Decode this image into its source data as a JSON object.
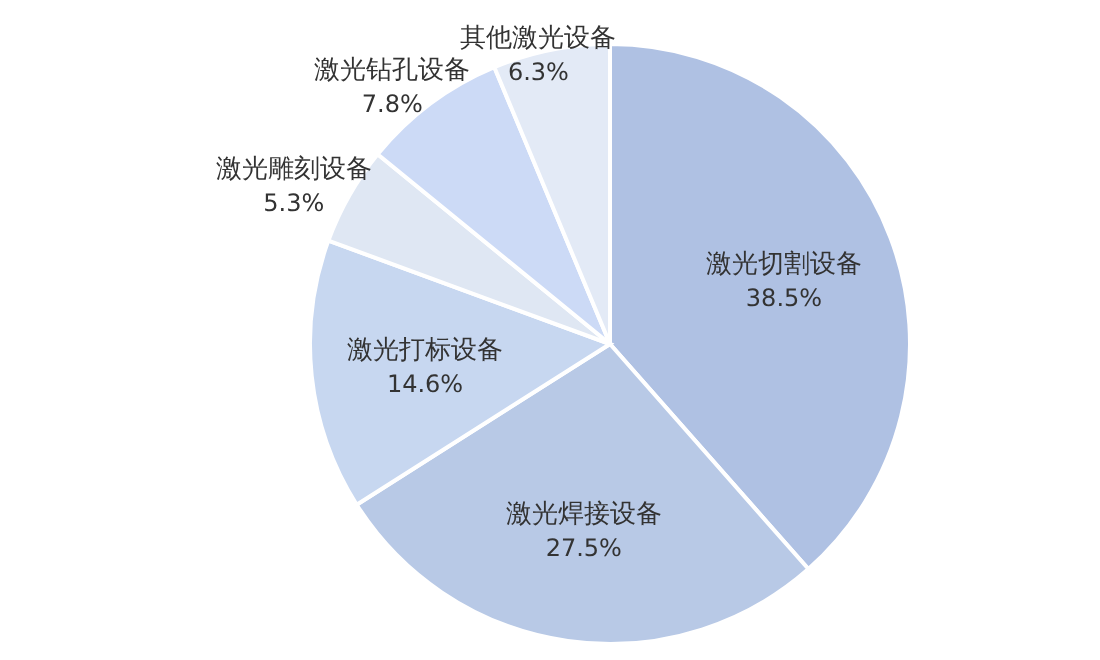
{
  "chart_data": {
    "type": "pie",
    "categories": [
      "激光切割设备",
      "激光焊接设备",
      "激光打标设备",
      "激光雕刻设备",
      "激光钻孔设备",
      "其他激光设备"
    ],
    "values": [
      38.5,
      27.5,
      14.6,
      5.3,
      7.8,
      6.3
    ],
    "colors": [
      "#afc1e3",
      "#b8c9e6",
      "#c7d7f0",
      "#dfe7f3",
      "#ccdaf6",
      "#e3eaf6"
    ],
    "value_labels": [
      "38.5%",
      "27.5%",
      "14.6%",
      "5.3%",
      "7.8%",
      "6.3%"
    ]
  }
}
